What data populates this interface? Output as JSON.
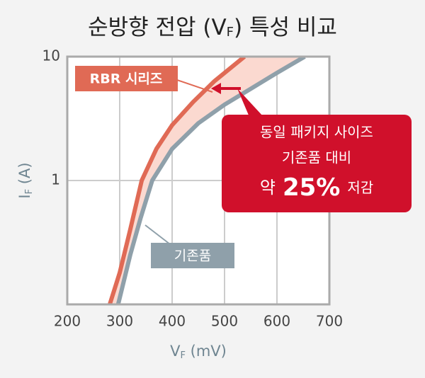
{
  "chart_data": {
    "type": "line",
    "title": {
      "main": "순방향 전압 (V",
      "sub": "F",
      "tail": ") 특성 비교"
    },
    "x_label": {
      "main": "V",
      "sub": "F",
      "tail": " (mV)"
    },
    "y_label": {
      "main": "I",
      "sub": "F",
      "tail": " (A)"
    },
    "xlim": [
      200,
      700
    ],
    "xticks": [
      200,
      300,
      400,
      500,
      600,
      700
    ],
    "ylim": [
      0.1,
      10
    ],
    "yticks": [
      1,
      10
    ],
    "ylog": true,
    "grid": true,
    "series": [
      {
        "name": "RBR 시리즈",
        "color": "#e06a55",
        "x": [
          281,
          300,
          320,
          342,
          370,
          400,
          440,
          480,
          538
        ],
        "values": [
          0.1,
          0.18,
          0.4,
          1,
          1.8,
          2.8,
          4.3,
          6.3,
          10
        ]
      },
      {
        "name": "기존품",
        "color": "#8fa0aa",
        "x": [
          297,
          320,
          340,
          362,
          400,
          450,
          500,
          550,
          600,
          653
        ],
        "values": [
          0.1,
          0.25,
          0.5,
          1,
          1.8,
          2.9,
          4.1,
          5.5,
          7.4,
          10
        ]
      }
    ],
    "callout": {
      "line1": "동일 패키지 사이즈",
      "line2": "기존품 대비",
      "prefix": "약",
      "highlight": "25%",
      "suffix": "저감"
    }
  }
}
